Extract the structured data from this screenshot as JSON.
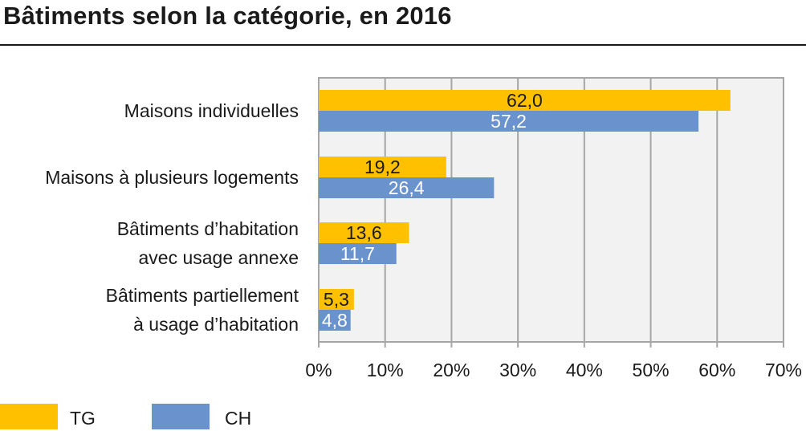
{
  "title": "Bâtiments selon la catégorie, en 2016",
  "colors": {
    "tg": "#FFC000",
    "ch": "#6A93CE",
    "plot_bg": "#F2F2F2",
    "grid": "#A6A6A6"
  },
  "chart_data": {
    "type": "bar",
    "orientation": "horizontal",
    "categories": [
      "Maisons individuelles",
      "Maisons à plusieurs logements",
      "Bâtiments d’habitation avec usage annexe",
      "Bâtiments partiellement à usage d’habitation"
    ],
    "category_lines": [
      [
        "Maisons individuelles"
      ],
      [
        "Maisons à plusieurs logements"
      ],
      [
        "Bâtiments d’habitation",
        "avec usage annexe"
      ],
      [
        "Bâtiments partiellement",
        "à usage d’habitation"
      ]
    ],
    "series": [
      {
        "name": "TG",
        "values": [
          62.0,
          19.2,
          13.6,
          5.3
        ],
        "labels": [
          "62,0",
          "19,2",
          "13,6",
          "5,3"
        ],
        "color": "#FFC000"
      },
      {
        "name": "CH",
        "values": [
          57.2,
          26.4,
          11.7,
          4.8
        ],
        "labels": [
          "57,2",
          "26,4",
          "11,7",
          "4,8"
        ],
        "color": "#6A93CE"
      }
    ],
    "xlim": [
      0,
      70
    ],
    "xticks": [
      0,
      10,
      20,
      30,
      40,
      50,
      60,
      70
    ],
    "xtick_labels": [
      "0%",
      "10%",
      "20%",
      "30%",
      "40%",
      "50%",
      "60%",
      "70%"
    ],
    "grid": true,
    "legend_position": "bottom-left"
  }
}
